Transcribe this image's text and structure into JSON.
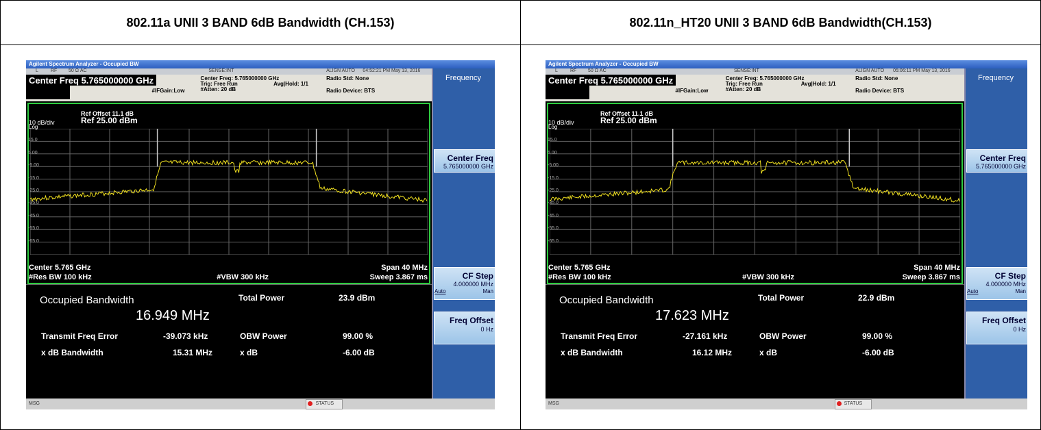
{
  "table": {
    "headers": [
      "802.11a UNII 3 BAND 6dB Bandwidth (CH.153)",
      "802.11n_HT20 UNII 3 BAND 6dB Bandwidth(CH.153)"
    ]
  },
  "panels": [
    {
      "window_title": "Agilent Spectrum Analyzer - Occupied BW",
      "status": {
        "l": "L",
        "rf": "RF",
        "imp": "50 Ω  AC",
        "sense": "SENSE:INT",
        "align": "ALIGN AUTO",
        "time": "04:52:21 PM May 13, 2016"
      },
      "center_freq": "Center Freq 5.765000000 GHz",
      "info": {
        "cf": "Center Freq: 5.765000000 GHz",
        "trig": "Trig: Free Run",
        "avg": "Avg|Hold: 1/1",
        "atten": "#Atten: 20 dB",
        "ifgain": "#IFGain:Low",
        "std": "Radio Std: None",
        "device": "Radio Device: BTS"
      },
      "graph": {
        "ref_offset": "Ref Offset 11.1 dB",
        "ref": "Ref 25.00 dBm",
        "div": "10 dB/div",
        "scale": "Log",
        "y_labels": [
          "15.0",
          "5.00",
          "-5.00",
          "-15.0",
          "-25.0",
          "-35.0",
          "-45.0",
          "-55.0",
          "-65.0"
        ],
        "center": "Center  5.765 GHz",
        "rbw": "#Res BW  100 kHz",
        "vbw": "#VBW  300 kHz",
        "span": "Span 40 MHz",
        "sweep": "Sweep  3.867 ms"
      },
      "measure": {
        "obw_label": "Occupied Bandwidth",
        "obw": "16.949 MHz",
        "tp_label": "Total Power",
        "tp": "23.9 dBm",
        "tfe_label": "Transmit Freq Error",
        "tfe": "-39.073 kHz",
        "obwp_label": "OBW Power",
        "obwp": "99.00 %",
        "xdb_bw_label": "x dB Bandwidth",
        "xdb_bw": "15.31 MHz",
        "xdb_label": "x dB",
        "xdb": "-6.00 dB"
      },
      "softkeys": {
        "menu": "Frequency",
        "cf": "Center Freq",
        "cf_val": "5.765000000 GHz",
        "step": "CF Step",
        "step_val": "4.000000 MHz",
        "auto": "Auto",
        "man": "Man",
        "offset": "Freq Offset",
        "offset_val": "0 Hz"
      },
      "statusbar": {
        "msg": "MSG",
        "status": "STATUS"
      }
    },
    {
      "window_title": "Agilent Spectrum Analyzer - Occupied BW",
      "status": {
        "l": "L",
        "rf": "RF",
        "imp": "50 Ω  AC",
        "sense": "SENSE:INT",
        "align": "ALIGN AUTO",
        "time": "05:06:11 PM May 13, 2016"
      },
      "center_freq": "Center Freq 5.765000000 GHz",
      "info": {
        "cf": "Center Freq: 5.765000000 GHz",
        "trig": "Trig: Free Run",
        "avg": "Avg|Hold: 1/1",
        "atten": "#Atten: 20 dB",
        "ifgain": "#IFGain:Low",
        "std": "Radio Std: None",
        "device": "Radio Device: BTS"
      },
      "graph": {
        "ref_offset": "Ref Offset 11.1 dB",
        "ref": "Ref 25.00 dBm",
        "div": "10 dB/div",
        "scale": "Log",
        "y_labels": [
          "15.0",
          "5.00",
          "-5.00",
          "-15.0",
          "-25.0",
          "-35.0",
          "-45.0",
          "-55.0",
          "-65.0"
        ],
        "center": "Center  5.765 GHz",
        "rbw": "#Res BW  100 kHz",
        "vbw": "#VBW  300 kHz",
        "span": "Span 40 MHz",
        "sweep": "Sweep  3.867 ms"
      },
      "measure": {
        "obw_label": "Occupied Bandwidth",
        "obw": "17.623 MHz",
        "tp_label": "Total Power",
        "tp": "22.9 dBm",
        "tfe_label": "Transmit Freq Error",
        "tfe": "-27.161 kHz",
        "obwp_label": "OBW Power",
        "obwp": "99.00 %",
        "xdb_bw_label": "x dB Bandwidth",
        "xdb_bw": "16.12 MHz",
        "xdb_label": "x dB",
        "xdb": "-6.00 dB"
      },
      "softkeys": {
        "menu": "Frequency",
        "cf": "Center Freq",
        "cf_val": "5.765000000 GHz",
        "step": "CF Step",
        "step_val": "4.000000 MHz",
        "auto": "Auto",
        "man": "Man",
        "offset": "Freq Offset",
        "offset_val": "0 Hz"
      },
      "statusbar": {
        "msg": "MSG",
        "status": "STATUS"
      }
    }
  ]
}
